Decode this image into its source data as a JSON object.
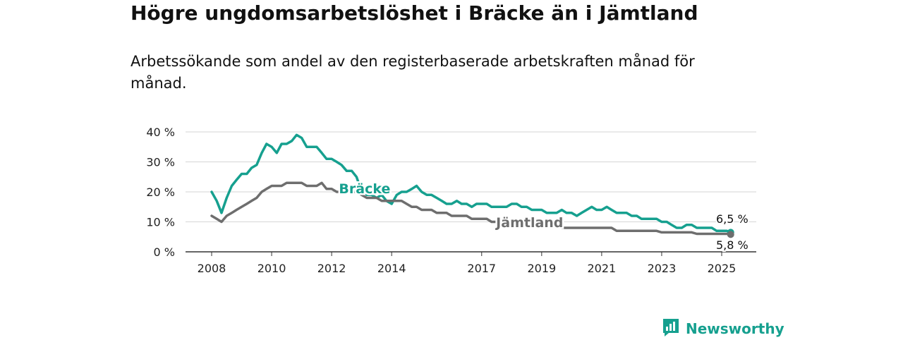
{
  "title": "Högre ungdomsarbetslöshet i Bräcke än i Jämtland",
  "subtitle": "Arbetssökande som andel av den registerbaserade arbetskraften månad för månad.",
  "brand": {
    "name": "Newsworthy",
    "icon": "newsworthy-logo-icon",
    "color": "#16a08f"
  },
  "chart_data": {
    "type": "line",
    "title": "Högre ungdomsarbetslöshet i Bräcke än i Jämtland",
    "xlabel": "",
    "ylabel": "",
    "xlim": [
      2008,
      2025.4
    ],
    "ylim": [
      0,
      40
    ],
    "grid": true,
    "y_ticks": [
      {
        "value": 0,
        "label": "0 %"
      },
      {
        "value": 10,
        "label": "10 %"
      },
      {
        "value": 20,
        "label": "20 %"
      },
      {
        "value": 30,
        "label": "30 %"
      },
      {
        "value": 40,
        "label": "40 %"
      }
    ],
    "x_ticks": [
      {
        "value": 2008,
        "label": "2008"
      },
      {
        "value": 2010,
        "label": "2010"
      },
      {
        "value": 2012,
        "label": "2012"
      },
      {
        "value": 2014,
        "label": "2014"
      },
      {
        "value": 2017,
        "label": "2017"
      },
      {
        "value": 2019,
        "label": "2019"
      },
      {
        "value": 2021,
        "label": "2021"
      },
      {
        "value": 2023,
        "label": "2023"
      },
      {
        "value": 2025,
        "label": "2025"
      }
    ],
    "series": [
      {
        "name": "Bräcke",
        "color": "#16a08f",
        "end_label": "6,5 %",
        "x": [
          2008.0,
          2008.17,
          2008.33,
          2008.5,
          2008.67,
          2008.83,
          2009.0,
          2009.17,
          2009.33,
          2009.5,
          2009.67,
          2009.83,
          2010.0,
          2010.17,
          2010.33,
          2010.5,
          2010.67,
          2010.83,
          2011.0,
          2011.17,
          2011.33,
          2011.5,
          2011.67,
          2011.83,
          2012.0,
          2012.17,
          2012.33,
          2012.5,
          2012.67,
          2012.83,
          2013.0,
          2013.17,
          2013.33,
          2013.5,
          2013.67,
          2013.83,
          2014.0,
          2014.17,
          2014.33,
          2014.5,
          2014.67,
          2014.83,
          2015.0,
          2015.17,
          2015.33,
          2015.5,
          2015.67,
          2015.83,
          2016.0,
          2016.17,
          2016.33,
          2016.5,
          2016.67,
          2016.83,
          2017.0,
          2017.17,
          2017.33,
          2017.5,
          2017.67,
          2017.83,
          2018.0,
          2018.17,
          2018.33,
          2018.5,
          2018.67,
          2018.83,
          2019.0,
          2019.17,
          2019.33,
          2019.5,
          2019.67,
          2019.83,
          2020.0,
          2020.17,
          2020.33,
          2020.5,
          2020.67,
          2020.83,
          2021.0,
          2021.17,
          2021.33,
          2021.5,
          2021.67,
          2021.83,
          2022.0,
          2022.17,
          2022.33,
          2022.5,
          2022.67,
          2022.83,
          2023.0,
          2023.17,
          2023.33,
          2023.5,
          2023.67,
          2023.83,
          2024.0,
          2024.17,
          2024.33,
          2024.5,
          2024.67,
          2024.83,
          2025.0,
          2025.17,
          2025.3
        ],
        "values": [
          20,
          17,
          13,
          18,
          22,
          24,
          26,
          26,
          28,
          29,
          33,
          36,
          35,
          33,
          36,
          36,
          37,
          39,
          38,
          35,
          35,
          35,
          33,
          31,
          31,
          30,
          29,
          27,
          27,
          25,
          20,
          19,
          19,
          18,
          19,
          17,
          16,
          19,
          20,
          20,
          21,
          22,
          20,
          19,
          19,
          18,
          17,
          16,
          16,
          17,
          16,
          16,
          15,
          16,
          16,
          16,
          15,
          15,
          15,
          15,
          16,
          16,
          15,
          15,
          14,
          14,
          14,
          13,
          13,
          13,
          14,
          13,
          13,
          12,
          13,
          14,
          15,
          14,
          14,
          15,
          14,
          13,
          13,
          13,
          12,
          12,
          11,
          11,
          11,
          11,
          10,
          10,
          9,
          8,
          8,
          9,
          9,
          8,
          8,
          8,
          8,
          7,
          7,
          7,
          6.5
        ]
      },
      {
        "name": "Jämtland",
        "color": "#6e6e6e",
        "end_label": "5,8 %",
        "x": [
          2008.0,
          2008.17,
          2008.33,
          2008.5,
          2008.67,
          2008.83,
          2009.0,
          2009.17,
          2009.33,
          2009.5,
          2009.67,
          2009.83,
          2010.0,
          2010.17,
          2010.33,
          2010.5,
          2010.67,
          2010.83,
          2011.0,
          2011.17,
          2011.33,
          2011.5,
          2011.67,
          2011.83,
          2012.0,
          2012.17,
          2012.33,
          2012.5,
          2012.67,
          2012.83,
          2013.0,
          2013.17,
          2013.33,
          2013.5,
          2013.67,
          2013.83,
          2014.0,
          2014.17,
          2014.33,
          2014.5,
          2014.67,
          2014.83,
          2015.0,
          2015.17,
          2015.33,
          2015.5,
          2015.67,
          2015.83,
          2016.0,
          2016.17,
          2016.33,
          2016.5,
          2016.67,
          2016.83,
          2017.0,
          2017.17,
          2017.33,
          2017.5,
          2017.67,
          2017.83,
          2018.0,
          2018.17,
          2018.33,
          2018.5,
          2018.67,
          2018.83,
          2019.0,
          2019.17,
          2019.33,
          2019.5,
          2019.67,
          2019.83,
          2020.0,
          2020.17,
          2020.33,
          2020.5,
          2020.67,
          2020.83,
          2021.0,
          2021.17,
          2021.33,
          2021.5,
          2021.67,
          2021.83,
          2022.0,
          2022.17,
          2022.33,
          2022.5,
          2022.67,
          2022.83,
          2023.0,
          2023.17,
          2023.33,
          2023.5,
          2023.67,
          2023.83,
          2024.0,
          2024.17,
          2024.33,
          2024.5,
          2024.67,
          2024.83,
          2025.0,
          2025.17,
          2025.3
        ],
        "values": [
          12,
          11,
          10,
          12,
          13,
          14,
          15,
          16,
          17,
          18,
          20,
          21,
          22,
          22,
          22,
          23,
          23,
          23,
          23,
          22,
          22,
          22,
          23,
          21,
          21,
          20,
          20,
          20,
          20,
          20,
          19,
          18,
          18,
          18,
          17,
          17,
          17,
          17,
          17,
          16,
          15,
          15,
          14,
          14,
          14,
          13,
          13,
          13,
          12,
          12,
          12,
          12,
          11,
          11,
          11,
          11,
          10,
          10,
          10,
          10,
          10,
          9,
          9,
          9,
          9,
          9,
          9,
          9,
          9,
          9,
          8,
          8,
          8,
          8,
          8,
          8,
          8,
          8,
          8,
          8,
          8,
          7,
          7,
          7,
          7,
          7,
          7,
          7,
          7,
          7,
          6.5,
          6.5,
          6.5,
          6.5,
          6.5,
          6.5,
          6.5,
          6,
          6,
          6,
          6,
          6,
          6,
          6,
          5.8
        ]
      }
    ]
  }
}
